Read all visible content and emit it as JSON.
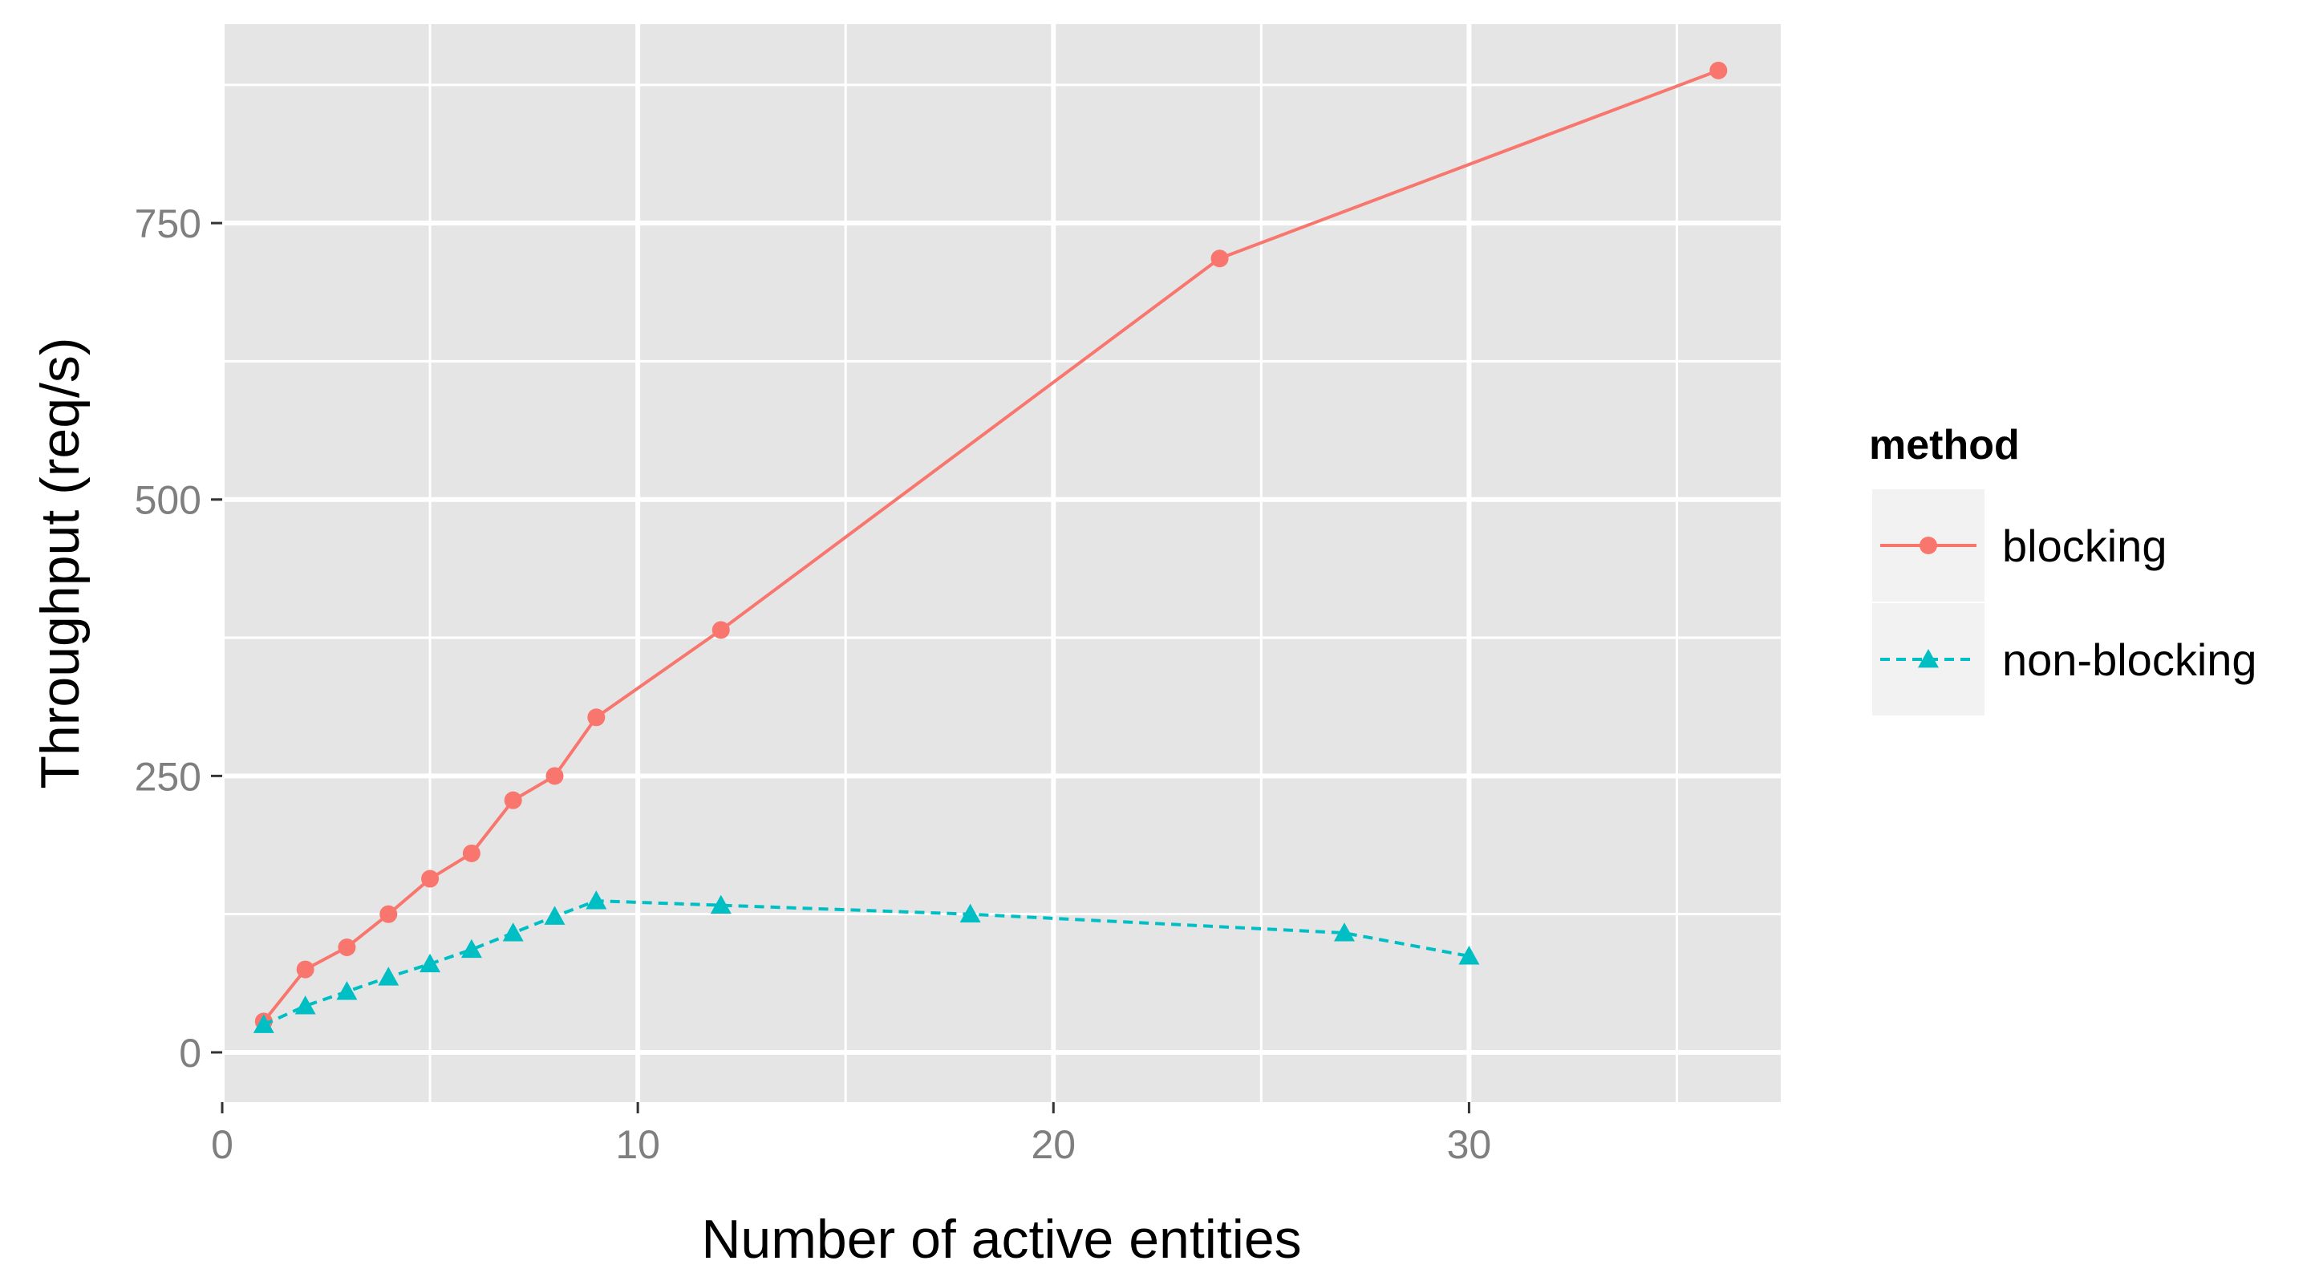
{
  "chart_data": {
    "type": "line",
    "title": "",
    "xlabel": "Number of active entities",
    "ylabel": "Throughput (req/s)",
    "xlim": [
      0,
      37.5
    ],
    "ylim": [
      -45,
      930
    ],
    "x_ticks": [
      0,
      10,
      20,
      30
    ],
    "x_tick_labels": [
      "0",
      "10",
      "20",
      "30"
    ],
    "x_minor_gridlines": [
      5,
      15,
      25,
      35
    ],
    "y_ticks": [
      0,
      250,
      500,
      750
    ],
    "y_tick_labels": [
      "0",
      "250",
      "500",
      "750"
    ],
    "y_minor_gridlines": [
      125,
      375,
      625,
      875
    ],
    "grid": true,
    "background": "#e5e5e5",
    "gridline_color": "#ffffff",
    "legend": {
      "title": "method",
      "position": "right",
      "key_background": "#f2f2f2"
    },
    "series": [
      {
        "name": "blocking",
        "color": "#f8766d",
        "linestyle": "solid",
        "marker": "circle",
        "x": [
          1,
          2,
          3,
          4,
          5,
          6,
          7,
          8,
          9,
          12,
          24,
          36
        ],
        "y": [
          28,
          75,
          95,
          125,
          157,
          180,
          228,
          250,
          303,
          382,
          718,
          888
        ]
      },
      {
        "name": "non-blocking",
        "color": "#00bfc4",
        "linestyle": "dashed",
        "marker": "triangle",
        "x": [
          1,
          2,
          3,
          4,
          5,
          6,
          7,
          8,
          9,
          12,
          18,
          27,
          30
        ],
        "y": [
          25,
          42,
          55,
          68,
          80,
          93,
          108,
          123,
          137,
          133,
          125,
          108,
          87
        ]
      }
    ]
  }
}
